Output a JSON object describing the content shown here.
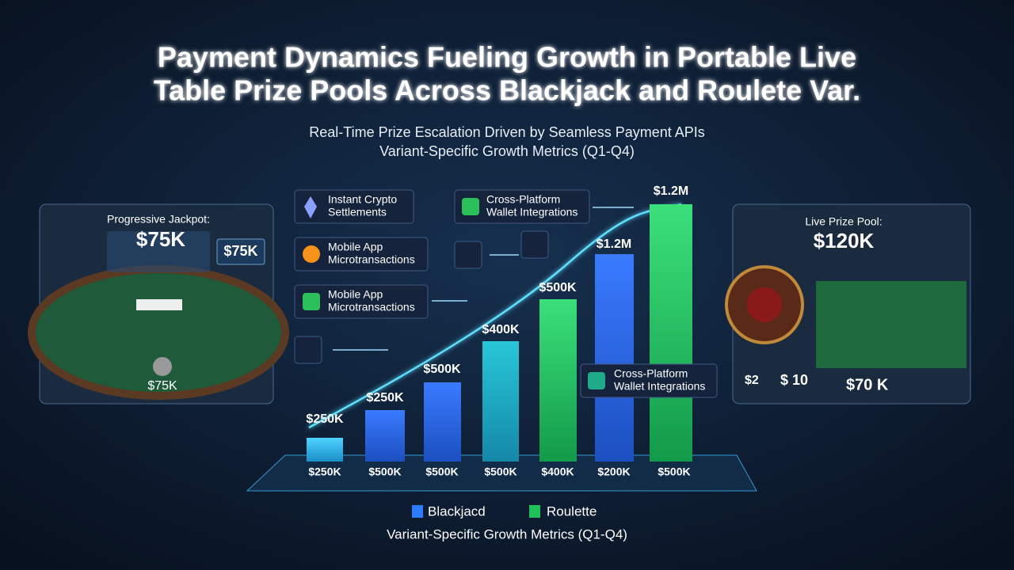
{
  "header": {
    "title_lines": [
      "Payment Dynamics Fueling Growth in Portable Live",
      "Table Prize Pools Across Blackjack and Roulete Var."
    ],
    "subtitle_lines": [
      "Real-Time Prize Escalation Driven by Seamless Payment APIs",
      "Variant-Specific Growth Metrics (Q1-Q4)"
    ]
  },
  "left_panel": {
    "heading": "Progressive Jackpot:",
    "amount": "$75K",
    "badge": "$75K",
    "footer": "$75K"
  },
  "right_panel": {
    "heading": "Live Prize Pool:",
    "amount": "$120K",
    "flow": [
      "$2",
      "$ 10",
      "$70 K"
    ]
  },
  "callouts": [
    {
      "lines": [
        "Instant Crypto",
        "Settlements"
      ]
    },
    {
      "lines": [
        "Mobile App",
        "Microtransactions"
      ]
    },
    {
      "lines": [
        "Mobile App",
        "Microtransactions"
      ]
    },
    {
      "lines": [
        "Cross-Platform",
        "Wallet Integrations"
      ]
    },
    {
      "lines": [
        "Cross-Platform",
        "Wallet Integrations"
      ]
    }
  ],
  "bars": [
    {
      "top": "$250K",
      "bottom": "$250K"
    },
    {
      "top": "$250K",
      "bottom": "$500K"
    },
    {
      "top": "$500K",
      "bottom": "$500K"
    },
    {
      "top": "$400K",
      "bottom": "$500K"
    },
    {
      "top": "$500K",
      "bottom": "$400K"
    },
    {
      "top": "$1.2M",
      "bottom": "$200K"
    },
    {
      "top": "$1.2M",
      "bottom": "$500K"
    }
  ],
  "legend": [
    "Blackjacd",
    "Roulette"
  ],
  "footer": "Variant-Specific Growth Metrics (Q1-Q4)"
}
